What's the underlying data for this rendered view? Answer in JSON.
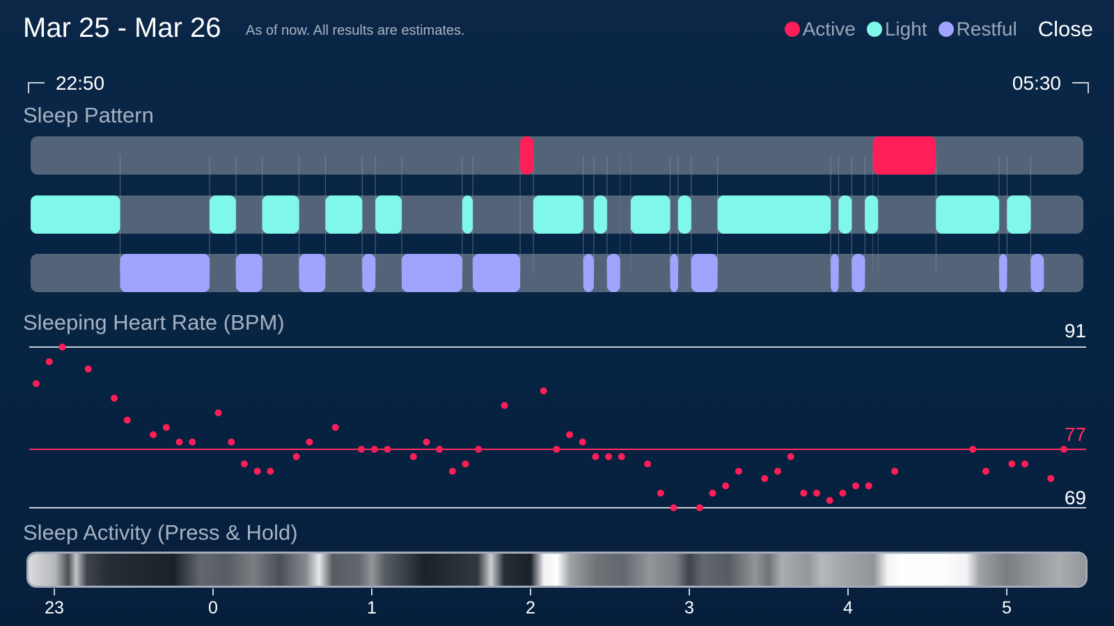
{
  "header": {
    "title": "Mar 25 - Mar 26",
    "subtitle": "As of now. All results are estimates.",
    "close_label": "Close"
  },
  "legend": [
    {
      "label": "Active",
      "color": "#ff1e57"
    },
    {
      "label": "Light",
      "color": "#7ff8ea"
    },
    {
      "label": "Restful",
      "color": "#a1a4ff"
    }
  ],
  "time_range": {
    "start": "22:50",
    "end": "05:30"
  },
  "sections": {
    "sleep_pattern": "Sleep Pattern",
    "heart_rate": "Sleeping Heart Rate (BPM)",
    "activity": "Sleep Activity (Press & Hold)"
  },
  "colors": {
    "active": "#ff1e57",
    "light": "#7ff8ea",
    "restful": "#a1a4ff",
    "track": "#536479",
    "hr_dot": "#ff1e57",
    "hr_line": "#ff2d5f"
  },
  "chart_data": [
    {
      "type": "timeline",
      "title": "Sleep Pattern",
      "x_unit": "minutes after 22:50",
      "rows": [
        {
          "name": "Active",
          "segments": [
            [
              186,
              191
            ],
            [
              320,
              344
            ]
          ]
        },
        {
          "name": "Light",
          "segments": [
            [
              0,
              34
            ],
            [
              68,
              78
            ],
            [
              88,
              102
            ],
            [
              112,
              126
            ],
            [
              131,
              141
            ],
            [
              164,
              168
            ],
            [
              191,
              210
            ],
            [
              214,
              219
            ],
            [
              228,
              243
            ],
            [
              246,
              251
            ],
            [
              261,
              304
            ],
            [
              307,
              312
            ],
            [
              317,
              322
            ],
            [
              344,
              368
            ],
            [
              371,
              380
            ]
          ]
        },
        {
          "name": "Restful",
          "segments": [
            [
              34,
              68
            ],
            [
              78,
              88
            ],
            [
              102,
              112
            ],
            [
              126,
              131
            ],
            [
              141,
              164
            ],
            [
              168,
              186
            ],
            [
              210,
              214
            ],
            [
              219,
              224
            ],
            [
              243,
              246
            ],
            [
              251,
              261
            ],
            [
              304,
              307
            ],
            [
              312,
              317
            ],
            [
              368,
              371
            ],
            [
              380,
              385
            ]
          ]
        }
      ]
    },
    {
      "type": "scatter",
      "title": "Sleeping Heart Rate (BPM)",
      "y_max": 91,
      "y_mid": 77,
      "y_min": 69,
      "x_unit": "minutes after 22:50",
      "points": [
        [
          0,
          86
        ],
        [
          5,
          89
        ],
        [
          10,
          91
        ],
        [
          20,
          88
        ],
        [
          30,
          84
        ],
        [
          35,
          81
        ],
        [
          45,
          79
        ],
        [
          50,
          80
        ],
        [
          55,
          78
        ],
        [
          60,
          78
        ],
        [
          70,
          82
        ],
        [
          75,
          78
        ],
        [
          80,
          75
        ],
        [
          85,
          74
        ],
        [
          90,
          74
        ],
        [
          100,
          76
        ],
        [
          105,
          78
        ],
        [
          115,
          80
        ],
        [
          125,
          77
        ],
        [
          130,
          77
        ],
        [
          135,
          77
        ],
        [
          145,
          76
        ],
        [
          150,
          78
        ],
        [
          155,
          77
        ],
        [
          160,
          74
        ],
        [
          165,
          75
        ],
        [
          170,
          77
        ],
        [
          180,
          83
        ],
        [
          195,
          85
        ],
        [
          200,
          77
        ],
        [
          205,
          79
        ],
        [
          210,
          78
        ],
        [
          215,
          76
        ],
        [
          220,
          76
        ],
        [
          225,
          76
        ],
        [
          235,
          75
        ],
        [
          240,
          71
        ],
        [
          245,
          69
        ],
        [
          255,
          69
        ],
        [
          260,
          71
        ],
        [
          265,
          72
        ],
        [
          270,
          74
        ],
        [
          280,
          73
        ],
        [
          285,
          74
        ],
        [
          290,
          76
        ],
        [
          295,
          71
        ],
        [
          300,
          71
        ],
        [
          305,
          70
        ],
        [
          310,
          71
        ],
        [
          315,
          72
        ],
        [
          320,
          72
        ],
        [
          330,
          74
        ],
        [
          360,
          77
        ],
        [
          365,
          74
        ],
        [
          375,
          75
        ],
        [
          380,
          75
        ],
        [
          390,
          73
        ],
        [
          395,
          77
        ]
      ]
    },
    {
      "type": "heatmap",
      "title": "Sleep Activity (Press & Hold)",
      "x_ticks": [
        "23",
        "0",
        "1",
        "2",
        "3",
        "4",
        "5"
      ],
      "x_unit": "minutes after 22:50",
      "intensity": [
        [
          0,
          0.85
        ],
        [
          10,
          0.7
        ],
        [
          15,
          0.25
        ],
        [
          18,
          0.75
        ],
        [
          22,
          0.2
        ],
        [
          30,
          0.1
        ],
        [
          55,
          0.05
        ],
        [
          65,
          0.35
        ],
        [
          75,
          0.3
        ],
        [
          85,
          0.45
        ],
        [
          95,
          0.25
        ],
        [
          105,
          0.5
        ],
        [
          110,
          0.9
        ],
        [
          115,
          0.3
        ],
        [
          125,
          0.35
        ],
        [
          130,
          0.55
        ],
        [
          135,
          0.3
        ],
        [
          150,
          0.05
        ],
        [
          170,
          0.15
        ],
        [
          175,
          0.8
        ],
        [
          180,
          0.1
        ],
        [
          190,
          0.05
        ],
        [
          195,
          0.95
        ],
        [
          200,
          1.0
        ],
        [
          205,
          0.6
        ],
        [
          215,
          0.4
        ],
        [
          225,
          0.35
        ],
        [
          235,
          0.55
        ],
        [
          245,
          0.45
        ],
        [
          250,
          0.2
        ],
        [
          255,
          0.35
        ],
        [
          265,
          0.3
        ],
        [
          275,
          0.55
        ],
        [
          280,
          0.4
        ],
        [
          285,
          0.65
        ],
        [
          295,
          0.55
        ],
        [
          300,
          0.7
        ],
        [
          310,
          0.6
        ],
        [
          320,
          0.55
        ],
        [
          325,
          0.95
        ],
        [
          330,
          1.0
        ],
        [
          345,
          1.0
        ],
        [
          355,
          0.95
        ],
        [
          360,
          0.6
        ],
        [
          370,
          0.45
        ],
        [
          380,
          0.55
        ],
        [
          390,
          0.65
        ],
        [
          400,
          0.55
        ]
      ]
    }
  ]
}
